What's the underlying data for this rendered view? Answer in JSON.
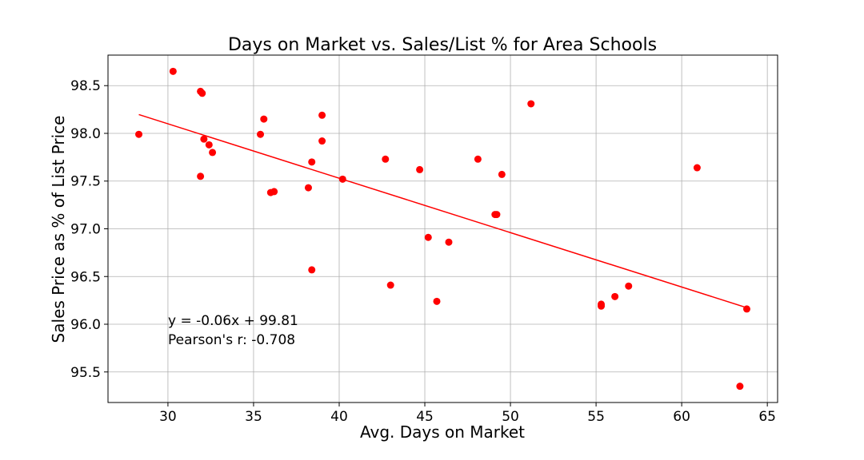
{
  "chart_data": {
    "type": "scatter",
    "title": "Days on Market vs. Sales/List % for Area Schools",
    "xlabel": "Avg. Days on Market",
    "ylabel": "Sales Price as % of List Price",
    "xlim": [
      26.5,
      65.6
    ],
    "ylim": [
      95.18,
      98.82
    ],
    "xticks": [
      30,
      35,
      40,
      45,
      50,
      55,
      60,
      65
    ],
    "yticks": [
      95.5,
      96.0,
      96.5,
      97.0,
      97.5,
      98.0,
      98.5
    ],
    "grid": true,
    "colors": {
      "points": "#ff0000",
      "trendline": "#ff0000",
      "grid": "#b0b0b0"
    },
    "points": [
      {
        "x": 28.3,
        "y": 97.99
      },
      {
        "x": 30.3,
        "y": 98.65
      },
      {
        "x": 31.9,
        "y": 98.44
      },
      {
        "x": 32.0,
        "y": 98.42
      },
      {
        "x": 31.9,
        "y": 97.55
      },
      {
        "x": 32.1,
        "y": 97.94
      },
      {
        "x": 32.4,
        "y": 97.88
      },
      {
        "x": 32.6,
        "y": 97.8
      },
      {
        "x": 35.4,
        "y": 97.99
      },
      {
        "x": 35.6,
        "y": 98.15
      },
      {
        "x": 36.0,
        "y": 97.38
      },
      {
        "x": 36.2,
        "y": 97.39
      },
      {
        "x": 38.2,
        "y": 97.43
      },
      {
        "x": 38.4,
        "y": 97.7
      },
      {
        "x": 38.4,
        "y": 96.57
      },
      {
        "x": 39.0,
        "y": 98.19
      },
      {
        "x": 39.0,
        "y": 97.92
      },
      {
        "x": 40.2,
        "y": 97.52
      },
      {
        "x": 42.7,
        "y": 97.73
      },
      {
        "x": 43.0,
        "y": 96.41
      },
      {
        "x": 44.7,
        "y": 97.62
      },
      {
        "x": 45.2,
        "y": 96.91
      },
      {
        "x": 45.7,
        "y": 96.24
      },
      {
        "x": 46.4,
        "y": 96.86
      },
      {
        "x": 48.1,
        "y": 97.73
      },
      {
        "x": 49.1,
        "y": 97.15
      },
      {
        "x": 49.2,
        "y": 97.15
      },
      {
        "x": 49.5,
        "y": 97.57
      },
      {
        "x": 51.2,
        "y": 98.31
      },
      {
        "x": 55.3,
        "y": 96.21
      },
      {
        "x": 55.3,
        "y": 96.19
      },
      {
        "x": 56.1,
        "y": 96.29
      },
      {
        "x": 56.9,
        "y": 96.4
      },
      {
        "x": 60.9,
        "y": 97.64
      },
      {
        "x": 63.4,
        "y": 95.35
      },
      {
        "x": 63.8,
        "y": 96.16
      }
    ],
    "trendline": {
      "slope": -0.057,
      "intercept": 99.81,
      "x_start": 28.3,
      "x_end": 63.8
    },
    "annotations": [
      "y = -0.06x + 99.81",
      "Pearson's r: -0.708"
    ]
  }
}
